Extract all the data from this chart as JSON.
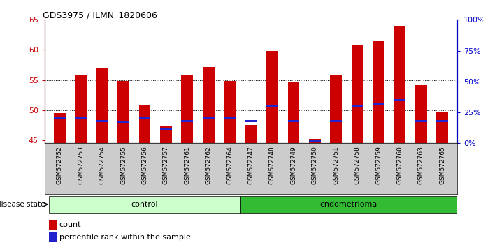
{
  "title": "GDS3975 / ILMN_1820606",
  "samples": [
    "GSM572752",
    "GSM572753",
    "GSM572754",
    "GSM572755",
    "GSM572756",
    "GSM572757",
    "GSM572761",
    "GSM572762",
    "GSM572764",
    "GSM572747",
    "GSM572748",
    "GSM572749",
    "GSM572750",
    "GSM572751",
    "GSM572758",
    "GSM572759",
    "GSM572760",
    "GSM572763",
    "GSM572765"
  ],
  "count_values": [
    49.5,
    55.8,
    57.0,
    54.8,
    50.8,
    47.4,
    55.8,
    57.2,
    54.9,
    47.5,
    59.8,
    54.7,
    45.2,
    55.9,
    60.7,
    61.5,
    64.0,
    54.2,
    49.8
  ],
  "percentile_values": [
    20,
    20,
    18,
    17,
    20,
    12,
    18,
    20,
    20,
    18,
    30,
    18,
    2,
    18,
    30,
    32,
    35,
    18,
    18
  ],
  "bar_color": "#cc0000",
  "percentile_color": "#2222cc",
  "control_count": 9,
  "endometrioma_count": 10,
  "control_label": "control",
  "endometrioma_label": "endometrioma",
  "disease_state_label": "disease state",
  "legend_count_label": "count",
  "legend_percentile_label": "percentile rank within the sample",
  "ylim_left": [
    44.5,
    65
  ],
  "ylim_right": [
    0,
    100
  ],
  "yticks_left": [
    45,
    50,
    55,
    60,
    65
  ],
  "yticks_right": [
    0,
    25,
    50,
    75,
    100
  ],
  "ytick_labels_right": [
    "0%",
    "25%",
    "50%",
    "75%",
    "100%"
  ],
  "background_color": "#ffffff",
  "bar_width": 0.55,
  "base_value": 44.5,
  "control_bg": "#ccffcc",
  "endometrioma_bg": "#33bb33",
  "xlabel_area_bg": "#cccccc",
  "grid_lines": [
    50,
    55,
    60
  ]
}
